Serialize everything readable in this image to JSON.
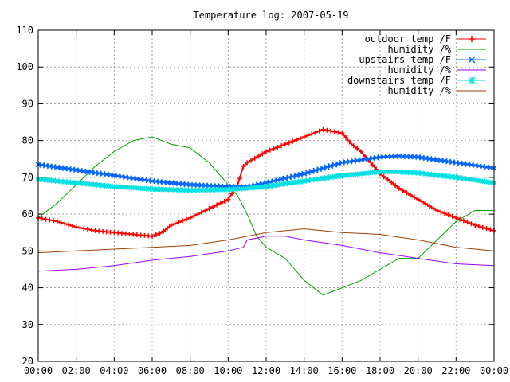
{
  "chart_data": {
    "type": "line",
    "title": "Temperature log: 2007-05-19",
    "xlabel": "",
    "ylabel": "",
    "xlim": [
      0,
      24
    ],
    "ylim": [
      20,
      110
    ],
    "grid": true,
    "legend_position": "top-right",
    "x_tick_labels": [
      "00:00",
      "02:00",
      "04:00",
      "06:00",
      "08:00",
      "10:00",
      "12:00",
      "14:00",
      "16:00",
      "18:00",
      "20:00",
      "22:00",
      "00:00"
    ],
    "y_tick_labels": [
      "20",
      "30",
      "40",
      "50",
      "60",
      "70",
      "80",
      "90",
      "100",
      "110"
    ],
    "series": [
      {
        "name": "outdoor temp /F",
        "color": "#ff0000",
        "marker": "plus",
        "x": [
          0,
          1,
          2,
          3,
          4,
          5,
          6,
          6.5,
          7,
          8,
          9,
          10,
          10.5,
          10.8,
          11,
          12,
          13,
          14,
          15,
          16,
          16.5,
          17,
          18,
          19,
          20,
          21,
          22,
          23,
          24
        ],
        "values": [
          59,
          58,
          56.5,
          55.5,
          55,
          54.5,
          54,
          55,
          57,
          59,
          61.5,
          64,
          68,
          73,
          74,
          77,
          79,
          81,
          83,
          82,
          79,
          77,
          71,
          67,
          64,
          61,
          59,
          57,
          55.5
        ]
      },
      {
        "name": "humidity /%",
        "color": "#00a000",
        "marker": "none",
        "x": [
          0,
          1,
          2,
          3,
          4,
          5,
          6,
          7,
          8,
          9,
          10,
          10.5,
          11,
          11.5,
          12,
          13,
          14,
          15,
          16,
          17,
          18,
          19,
          20,
          21,
          22,
          23,
          24
        ],
        "values": [
          59,
          63,
          68,
          73,
          77,
          80,
          81,
          79,
          78,
          74,
          68,
          65,
          60,
          54,
          51,
          48,
          42,
          38,
          40,
          42,
          45,
          48,
          48,
          53,
          58,
          61,
          61
        ]
      },
      {
        "name": "upstairs temp /F",
        "color": "#0066ff",
        "marker": "x",
        "x": [
          0,
          2,
          4,
          6,
          8,
          10,
          11,
          12,
          14,
          16,
          18,
          19,
          20,
          22,
          24
        ],
        "values": [
          73.5,
          72,
          70.5,
          69,
          68,
          67.5,
          67.5,
          68.5,
          71,
          74,
          75.5,
          75.8,
          75.5,
          74,
          72.5
        ]
      },
      {
        "name": "humidity /%",
        "color": "#a000ff",
        "marker": "none",
        "x": [
          0,
          2,
          4,
          6,
          8,
          10,
          10.8,
          11,
          12,
          13,
          14,
          16,
          18,
          20,
          22,
          24
        ],
        "values": [
          44.5,
          45,
          46,
          47.5,
          48.5,
          50,
          51,
          53,
          54,
          54,
          53,
          51.5,
          49.5,
          48,
          46.5,
          46
        ]
      },
      {
        "name": "downstairs temp /F",
        "color": "#00e0e0",
        "marker": "star",
        "x": [
          0,
          2,
          4,
          6,
          8,
          10,
          11,
          12,
          14,
          16,
          18,
          19,
          20,
          22,
          24
        ],
        "values": [
          69.5,
          68.5,
          67.5,
          66.8,
          66.5,
          66.7,
          67,
          67.5,
          69,
          70.5,
          71.5,
          71.5,
          71.2,
          70,
          68.5
        ]
      },
      {
        "name": "humidity /%",
        "color": "#a04000",
        "marker": "none",
        "x": [
          0,
          2,
          4,
          6,
          8,
          10,
          12,
          13,
          14,
          16,
          18,
          20,
          21,
          22,
          24
        ],
        "values": [
          49.5,
          50,
          50.5,
          51,
          51.5,
          53,
          55,
          55.5,
          56,
          55,
          54.5,
          53,
          52,
          51,
          50
        ]
      }
    ]
  }
}
